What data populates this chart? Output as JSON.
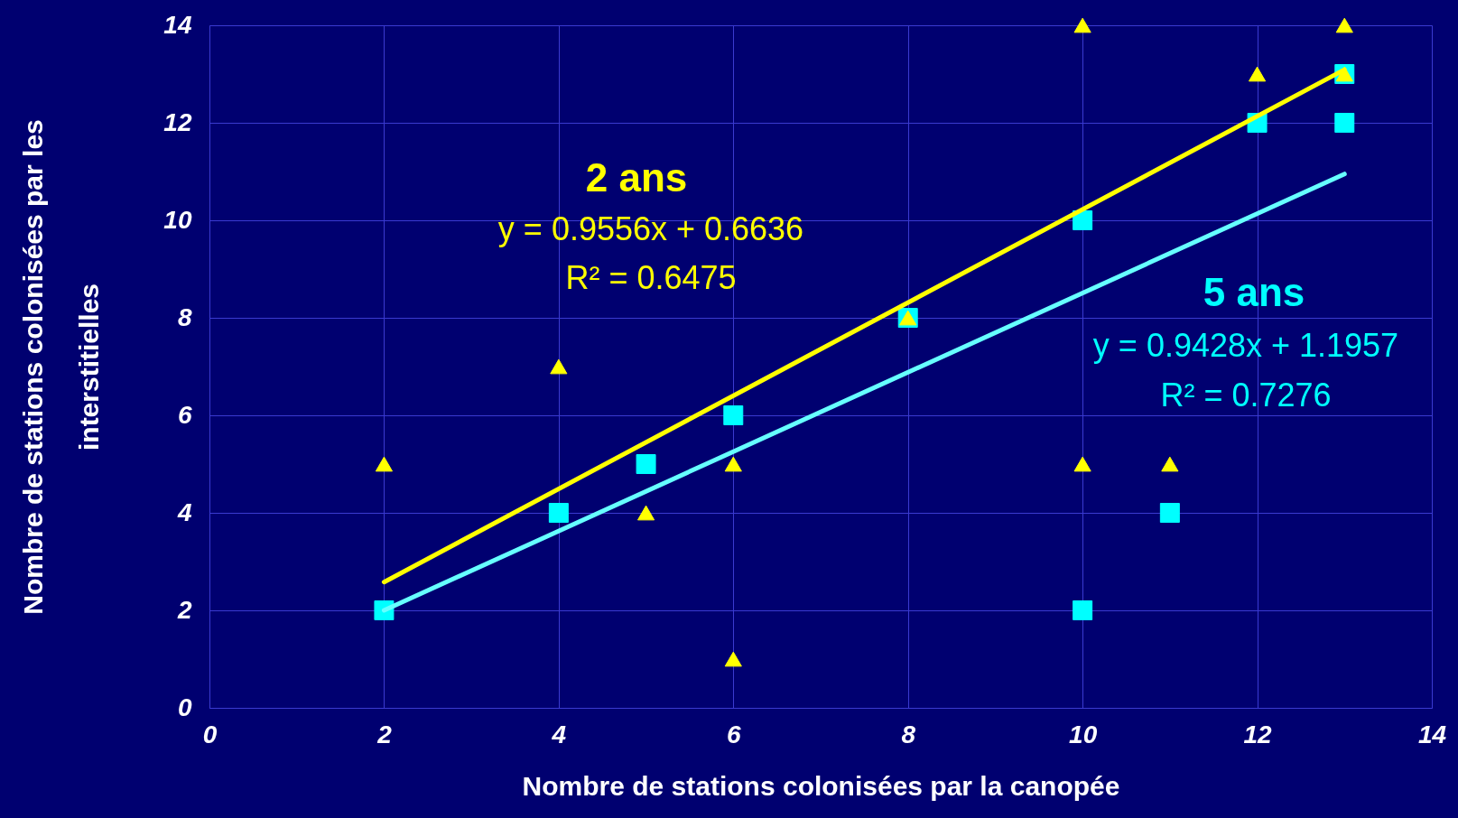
{
  "chart_data": {
    "type": "scatter",
    "xlabel": "Nombre de stations colonisées par la canopée",
    "ylabel": "Nombre de stations colonisées par les interstitielles",
    "xlim": [
      0,
      14
    ],
    "ylim": [
      0,
      14
    ],
    "xticks": [
      0,
      2,
      4,
      6,
      8,
      10,
      12,
      14
    ],
    "yticks": [
      0,
      2,
      4,
      6,
      8,
      10,
      12,
      14
    ],
    "grid": true,
    "series": [
      {
        "name": "2 ans",
        "type": "scatter",
        "marker": "triangle",
        "color": "#ffff00",
        "x": [
          2,
          4,
          5,
          6,
          6,
          8,
          10,
          10,
          11,
          12,
          13,
          13
        ],
        "values": [
          5,
          7,
          4,
          5,
          1,
          8,
          14,
          5,
          5,
          13,
          14,
          13
        ]
      },
      {
        "name": "5 ans",
        "type": "scatter",
        "marker": "square",
        "color": "#00ffff",
        "x": [
          2,
          4,
          5,
          6,
          8,
          10,
          10,
          11,
          12,
          13,
          13
        ],
        "values": [
          2,
          4,
          5,
          6,
          8,
          10,
          2,
          4,
          12,
          13,
          12
        ]
      },
      {
        "type": "line",
        "color": "#ffff00",
        "x": [
          2,
          13
        ],
        "values": [
          2.58,
          13.09
        ]
      },
      {
        "type": "line",
        "color": "#66ffff",
        "x": [
          2,
          13
        ],
        "values": [
          2.0,
          10.95
        ]
      }
    ],
    "annotations": [
      "y = 0.9556x + 0.6636",
      "R² = 0.6475",
      "y = 0.9428x + 1.1957",
      "R² = 0.7276"
    ]
  }
}
